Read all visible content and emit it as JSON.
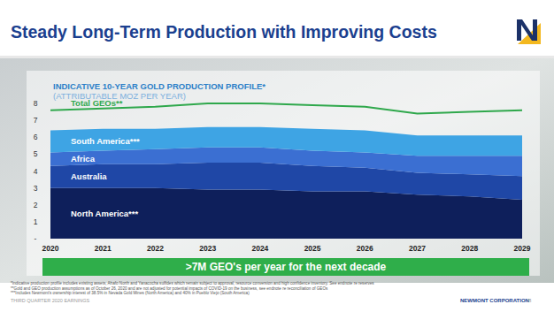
{
  "slide": {
    "title": "Steady Long-Term Production with Improving Costs",
    "footnotes": [
      "*Indicative production profile includes existing assets, Ahafo North and Yanacocha sulfides which remain subject to approval, resource conversion and high confidence inventory. See endnote re reserves",
      "**Gold and GEO production assumptions as of October 26, 2020 and are not adjusted for potential impacts of COVID-19 on the business, see endnote re reconciliation of GEOs",
      "***Includes Newmont's ownership interest of 38.5% in Nevada Gold Mines (North America) and 40% in Pueblo Viejo (South America)"
    ],
    "footer_left": "THIRD QUARTER 2020 EARNINGS",
    "footer_right": "NEWMONT CORPORATION",
    "page_number": "8"
  },
  "chart_data": {
    "type": "area",
    "stacked": true,
    "grid": false,
    "title": "INDICATIVE 10-YEAR GOLD PRODUCTION PROFILE*",
    "subtitle": "(ATTRIBUTABLE MOZ PER YEAR)",
    "annotations": [
      ">7M GEO's per year for the next decade"
    ],
    "categories": [
      "2020",
      "2021",
      "2022",
      "2023",
      "2024",
      "2025",
      "2026",
      "2027",
      "2028",
      "2029"
    ],
    "ylim": [
      0,
      8
    ],
    "yticks": [
      {
        "value": 0,
        "label": "-"
      },
      1,
      2,
      3,
      4,
      5,
      6,
      7,
      8
    ],
    "series": [
      {
        "name": "North America***",
        "color": "#0e1f5b",
        "values": [
          3.0,
          3.0,
          3.0,
          2.9,
          2.9,
          2.8,
          2.8,
          2.6,
          2.5,
          2.3
        ]
      },
      {
        "name": "Australia",
        "color": "#1f47a6",
        "values": [
          1.3,
          1.4,
          1.4,
          1.6,
          1.6,
          1.5,
          1.4,
          1.3,
          1.3,
          1.4
        ]
      },
      {
        "name": "Africa",
        "color": "#3b6fd2",
        "values": [
          0.8,
          0.8,
          0.9,
          0.9,
          0.9,
          0.9,
          0.9,
          1.0,
          1.1,
          1.2
        ]
      },
      {
        "name": "South America***",
        "color": "#3ea4e4",
        "values": [
          1.3,
          1.3,
          1.2,
          1.2,
          1.2,
          1.3,
          1.3,
          1.2,
          1.2,
          1.2
        ]
      },
      {
        "name": "Total GEOs**",
        "color": "#2fa84c",
        "type": "line",
        "values": [
          7.6,
          7.7,
          7.8,
          8.0,
          8.0,
          7.9,
          7.8,
          7.4,
          7.5,
          7.6
        ]
      }
    ]
  }
}
